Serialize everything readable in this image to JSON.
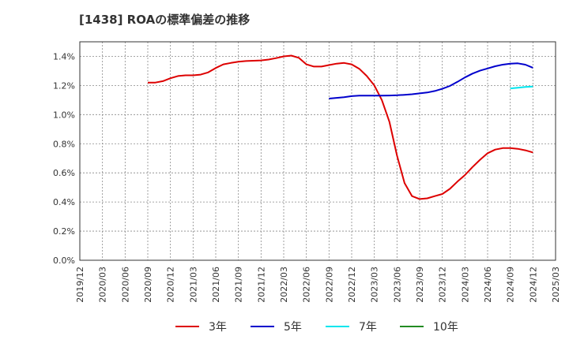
{
  "chart_data": {
    "type": "line",
    "title": "[1438]  ROAの標準偏差の推移",
    "xlabel": "",
    "ylabel": "",
    "ylim": [
      0,
      1.5
    ],
    "y_ticks": [
      0.0,
      0.2,
      0.4,
      0.6,
      0.8,
      1.0,
      1.2,
      1.4
    ],
    "y_tick_labels": [
      "0.0%",
      "0.2%",
      "0.4%",
      "0.6%",
      "0.8%",
      "1.0%",
      "1.2%",
      "1.4%"
    ],
    "x_ticks": [
      "2019/12",
      "2020/03",
      "2020/06",
      "2020/09",
      "2020/12",
      "2021/03",
      "2021/06",
      "2021/09",
      "2021/12",
      "2022/03",
      "2022/06",
      "2022/09",
      "2022/12",
      "2023/03",
      "2023/06",
      "2023/09",
      "2023/12",
      "2024/03",
      "2024/06",
      "2024/09",
      "2024/12",
      "2025/03"
    ],
    "grid": true,
    "legend_position": "bottom",
    "series": [
      {
        "name": "3年",
        "color": "#dd0000",
        "points": [
          [
            "2020/09",
            1.22
          ],
          [
            "2020/10",
            1.22
          ],
          [
            "2020/11",
            1.23
          ],
          [
            "2020/12",
            1.25
          ],
          [
            "2021/01",
            1.265
          ],
          [
            "2021/02",
            1.27
          ],
          [
            "2021/03",
            1.27
          ],
          [
            "2021/04",
            1.275
          ],
          [
            "2021/05",
            1.29
          ],
          [
            "2021/06",
            1.32
          ],
          [
            "2021/07",
            1.345
          ],
          [
            "2021/08",
            1.355
          ],
          [
            "2021/09",
            1.363
          ],
          [
            "2021/10",
            1.368
          ],
          [
            "2021/11",
            1.37
          ],
          [
            "2021/12",
            1.372
          ],
          [
            "2022/01",
            1.378
          ],
          [
            "2022/02",
            1.388
          ],
          [
            "2022/03",
            1.4
          ],
          [
            "2022/04",
            1.405
          ],
          [
            "2022/05",
            1.39
          ],
          [
            "2022/06",
            1.345
          ],
          [
            "2022/07",
            1.33
          ],
          [
            "2022/08",
            1.33
          ],
          [
            "2022/09",
            1.34
          ],
          [
            "2022/10",
            1.35
          ],
          [
            "2022/11",
            1.355
          ],
          [
            "2022/12",
            1.345
          ],
          [
            "2023/01",
            1.315
          ],
          [
            "2023/02",
            1.265
          ],
          [
            "2023/03",
            1.2
          ],
          [
            "2023/04",
            1.1
          ],
          [
            "2023/05",
            0.95
          ],
          [
            "2023/06",
            0.72
          ],
          [
            "2023/07",
            0.53
          ],
          [
            "2023/08",
            0.44
          ],
          [
            "2023/09",
            0.42
          ],
          [
            "2023/10",
            0.425
          ],
          [
            "2023/11",
            0.44
          ],
          [
            "2023/12",
            0.455
          ],
          [
            "2024/01",
            0.49
          ],
          [
            "2024/02",
            0.54
          ],
          [
            "2024/03",
            0.585
          ],
          [
            "2024/04",
            0.64
          ],
          [
            "2024/05",
            0.69
          ],
          [
            "2024/06",
            0.735
          ],
          [
            "2024/07",
            0.76
          ],
          [
            "2024/08",
            0.77
          ],
          [
            "2024/09",
            0.77
          ],
          [
            "2024/10",
            0.765
          ],
          [
            "2024/11",
            0.755
          ],
          [
            "2024/12",
            0.74
          ]
        ]
      },
      {
        "name": "5年",
        "color": "#0000cc",
        "points": [
          [
            "2022/09",
            1.11
          ],
          [
            "2022/10",
            1.115
          ],
          [
            "2022/11",
            1.12
          ],
          [
            "2022/12",
            1.127
          ],
          [
            "2023/01",
            1.13
          ],
          [
            "2023/02",
            1.13
          ],
          [
            "2023/03",
            1.13
          ],
          [
            "2023/04",
            1.13
          ],
          [
            "2023/05",
            1.131
          ],
          [
            "2023/06",
            1.133
          ],
          [
            "2023/07",
            1.136
          ],
          [
            "2023/08",
            1.14
          ],
          [
            "2023/09",
            1.146
          ],
          [
            "2023/10",
            1.152
          ],
          [
            "2023/11",
            1.162
          ],
          [
            "2023/12",
            1.177
          ],
          [
            "2024/01",
            1.197
          ],
          [
            "2024/02",
            1.225
          ],
          [
            "2024/03",
            1.255
          ],
          [
            "2024/04",
            1.282
          ],
          [
            "2024/05",
            1.302
          ],
          [
            "2024/06",
            1.317
          ],
          [
            "2024/07",
            1.332
          ],
          [
            "2024/08",
            1.343
          ],
          [
            "2024/09",
            1.35
          ],
          [
            "2024/10",
            1.352
          ],
          [
            "2024/11",
            1.343
          ],
          [
            "2024/12",
            1.322
          ]
        ]
      },
      {
        "name": "7年",
        "color": "#00e5ee",
        "points": [
          [
            "2024/09",
            1.18
          ],
          [
            "2024/10",
            1.185
          ],
          [
            "2024/11",
            1.19
          ],
          [
            "2024/12",
            1.193
          ]
        ]
      },
      {
        "name": "10年",
        "color": "#228b22",
        "points": []
      }
    ]
  }
}
